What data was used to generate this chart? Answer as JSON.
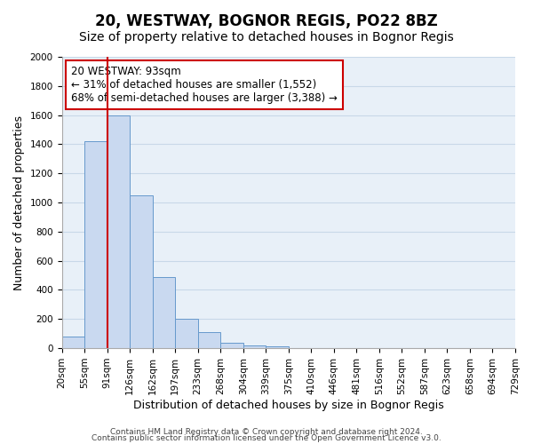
{
  "title": "20, WESTWAY, BOGNOR REGIS, PO22 8BZ",
  "subtitle": "Size of property relative to detached houses in Bognor Regis",
  "xlabel": "Distribution of detached houses by size in Bognor Regis",
  "ylabel": "Number of detached properties",
  "bar_values": [
    80,
    1420,
    1600,
    1050,
    490,
    200,
    110,
    40,
    20,
    10,
    0,
    0,
    0,
    0,
    0,
    0,
    0,
    0,
    0,
    0
  ],
  "bin_labels": [
    "20sqm",
    "55sqm",
    "91sqm",
    "126sqm",
    "162sqm",
    "197sqm",
    "233sqm",
    "268sqm",
    "304sqm",
    "339sqm",
    "375sqm",
    "410sqm",
    "446sqm",
    "481sqm",
    "516sqm",
    "552sqm",
    "587sqm",
    "623sqm",
    "658sqm",
    "694sqm",
    "729sqm"
  ],
  "bar_color": "#c9d9f0",
  "bar_edge_color": "#6699cc",
  "grid_color": "#c8d8e8",
  "background_color": "#e8f0f8",
  "vline_x": 2,
  "vline_color": "#cc0000",
  "annotation_box_text": "20 WESTWAY: 93sqm\n← 31% of detached houses are smaller (1,552)\n68% of semi-detached houses are larger (3,388) →",
  "annotation_box_color": "#cc0000",
  "ylim": [
    0,
    2000
  ],
  "yticks": [
    0,
    200,
    400,
    600,
    800,
    1000,
    1200,
    1400,
    1600,
    1800,
    2000
  ],
  "footer_line1": "Contains HM Land Registry data © Crown copyright and database right 2024.",
  "footer_line2": "Contains public sector information licensed under the Open Government Licence v3.0.",
  "title_fontsize": 12,
  "subtitle_fontsize": 10,
  "xlabel_fontsize": 9,
  "ylabel_fontsize": 9,
  "tick_fontsize": 7.5,
  "annotation_fontsize": 8.5,
  "footer_fontsize": 6.5
}
